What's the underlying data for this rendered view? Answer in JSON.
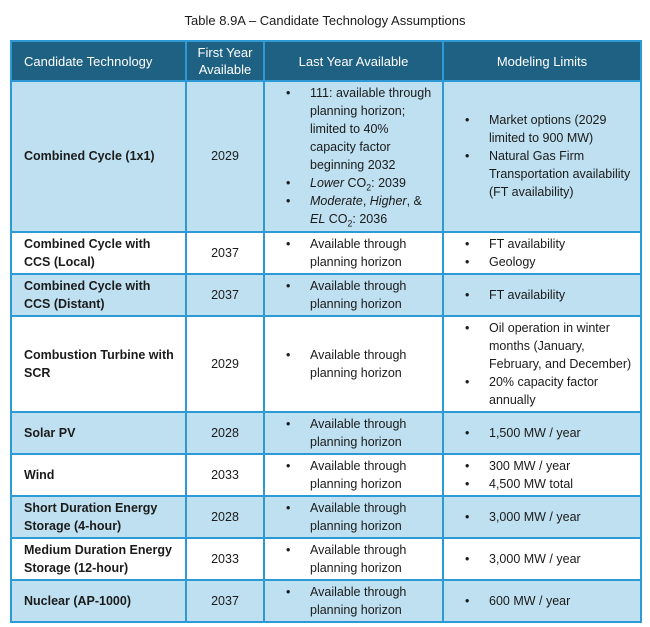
{
  "title": "Table 8.9A – Candidate Technology Assumptions",
  "colors": {
    "header_background": "#1E6183",
    "header_text": "#FFFFFF",
    "shaded_row_background": "#BEE0F0",
    "border": "#2D9AD5",
    "body_text": "#1B1B1B"
  },
  "table": {
    "headers": [
      "Candidate Technology",
      "First Year Available",
      "Last Year Available",
      "Modeling Limits"
    ],
    "rows": [
      {
        "technology": "Combined Cycle (1x1)",
        "first_year": "2029",
        "last_year": [
          [
            "111: available through planning horizon; limited to 40% capacity factor beginning 2032"
          ],
          [
            {
              "t": "Lower",
              "italic": true
            },
            {
              "t": " CO"
            },
            {
              "t": "2",
              "sub": true
            },
            {
              "t": ": 2039"
            }
          ],
          [
            {
              "t": "Moderate",
              "italic": true
            },
            {
              "t": ", "
            },
            {
              "t": "Higher",
              "italic": true
            },
            {
              "t": ", & "
            },
            {
              "t": "EL",
              "italic": true
            },
            {
              "t": " CO"
            },
            {
              "t": "2",
              "sub": true
            },
            {
              "t": ": 2036"
            }
          ]
        ],
        "limits": [
          [
            "Market options (2029 limited to 900 MW)"
          ],
          [
            "Natural Gas Firm Transportation availability (FT availability)"
          ]
        ]
      },
      {
        "technology": "Combined Cycle with CCS (Local)",
        "first_year": "2037",
        "last_year": [
          [
            "Available through planning horizon"
          ]
        ],
        "limits": [
          [
            "FT availability"
          ],
          [
            "Geology"
          ]
        ]
      },
      {
        "technology": "Combined Cycle with CCS (Distant)",
        "first_year": "2037",
        "last_year": [
          [
            "Available through planning horizon"
          ]
        ],
        "limits": [
          [
            "FT availability"
          ]
        ]
      },
      {
        "technology": "Combustion Turbine with SCR",
        "first_year": "2029",
        "last_year": [
          [
            "Available through planning horizon"
          ]
        ],
        "limits": [
          [
            "Oil operation in winter months (January, February, and December)"
          ],
          [
            "20% capacity factor annually"
          ]
        ]
      },
      {
        "technology": "Solar PV",
        "first_year": "2028",
        "last_year": [
          [
            "Available through planning horizon"
          ]
        ],
        "limits": [
          [
            "1,500 MW / year"
          ]
        ]
      },
      {
        "technology": "Wind",
        "first_year": "2033",
        "last_year": [
          [
            "Available through planning horizon"
          ]
        ],
        "limits": [
          [
            "300 MW / year"
          ],
          [
            "4,500 MW total"
          ]
        ]
      },
      {
        "technology": "Short Duration Energy Storage (4-hour)",
        "first_year": "2028",
        "last_year": [
          [
            "Available through planning horizon"
          ]
        ],
        "limits": [
          [
            "3,000 MW / year"
          ]
        ]
      },
      {
        "technology": "Medium Duration Energy Storage (12-hour)",
        "first_year": "2033",
        "last_year": [
          [
            "Available through planning horizon"
          ]
        ],
        "limits": [
          [
            "3,000 MW / year"
          ]
        ]
      },
      {
        "technology": "Nuclear (AP-1000)",
        "first_year": "2037",
        "last_year": [
          [
            "Available through planning horizon"
          ]
        ],
        "limits": [
          [
            "600 MW / year"
          ]
        ]
      }
    ]
  }
}
